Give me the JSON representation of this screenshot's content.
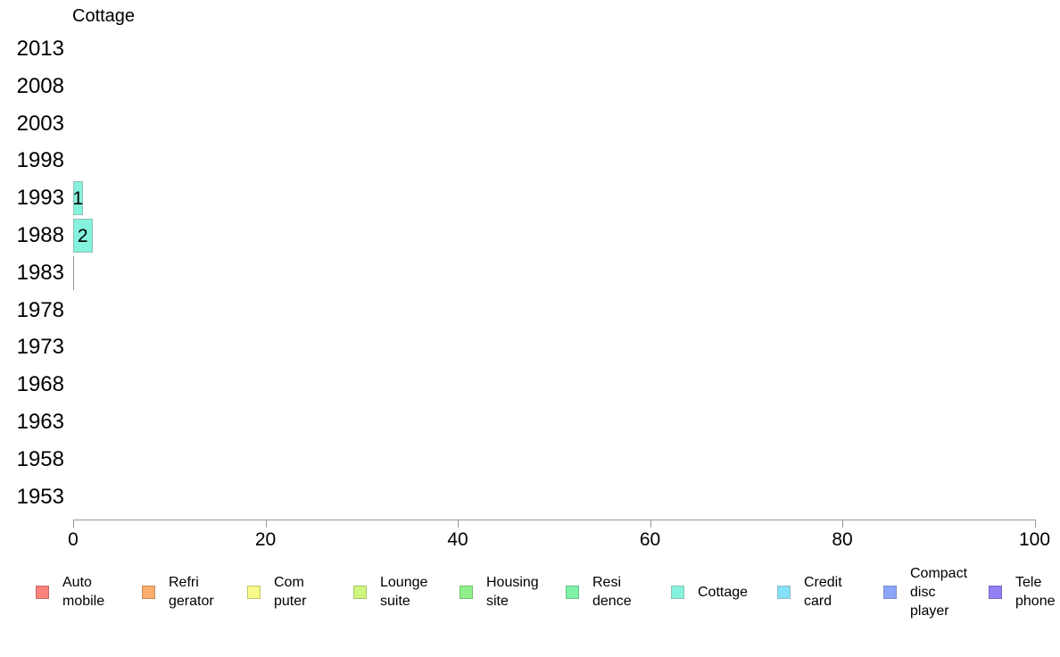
{
  "chart_data": {
    "type": "bar",
    "orientation": "horizontal",
    "title": "Cottage",
    "categories": [
      "2013",
      "2008",
      "2003",
      "1998",
      "1993",
      "1988",
      "1983",
      "1978",
      "1973",
      "1968",
      "1963",
      "1958",
      "1953"
    ],
    "series": [
      {
        "name": "Cottage",
        "values": [
          null,
          null,
          null,
          null,
          1,
          2,
          0,
          null,
          null,
          null,
          null,
          null,
          null
        ],
        "fill": "#84F2DC",
        "border": "#8FBFB4"
      }
    ],
    "bar_labels": [
      "",
      "",
      "",
      "",
      "1",
      "2",
      "",
      "",
      "",
      "",
      "",
      "",
      ""
    ],
    "xlabel": "",
    "ylabel": "",
    "x_axis": {
      "range": [
        0,
        100
      ],
      "ticks": [
        0,
        20,
        40,
        60,
        80,
        100
      ]
    },
    "grid": false,
    "legend_position": "bottom",
    "legend": [
      {
        "label": "Auto\nmobile",
        "fill": "#F9837C",
        "border": "#C66A64"
      },
      {
        "label": "Refri\ngerator",
        "fill": "#FBAE6E",
        "border": "#C98B57"
      },
      {
        "label": "Com\nputer",
        "fill": "#F7F98A",
        "border": "#C3C56C"
      },
      {
        "label": "Lounge\nsuite",
        "fill": "#CFF57E",
        "border": "#A4C363"
      },
      {
        "label": "Housing\nsite",
        "fill": "#8FF08B",
        "border": "#71C06E"
      },
      {
        "label": "Resi\ndence",
        "fill": "#80F2A8",
        "border": "#65C287"
      },
      {
        "label": "Cottage",
        "fill": "#84F2DC",
        "border": "#8FBFB4"
      },
      {
        "label": "Credit\ncard",
        "fill": "#84E1F9",
        "border": "#92B7C9"
      },
      {
        "label": "Compact\ndisc\nplayer",
        "fill": "#8AA5F9",
        "border": "#7D8EC9"
      },
      {
        "label": "Tele\nphone",
        "fill": "#9180F2",
        "border": "#7666C6"
      }
    ],
    "colors": {
      "axis": "#999999",
      "zero_bar_line": "#999999",
      "background": "#FFFFFF",
      "text": "#000000"
    }
  }
}
